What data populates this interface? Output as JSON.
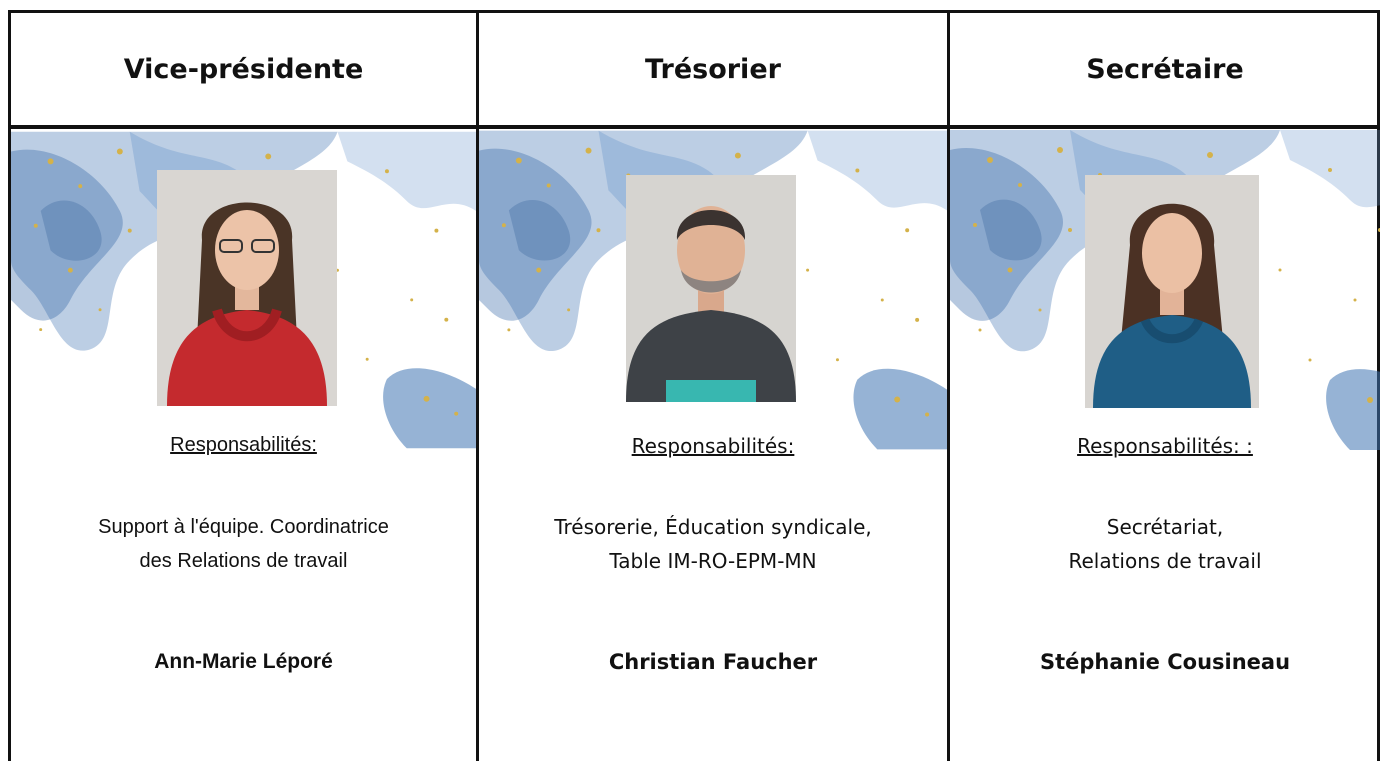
{
  "columns": [
    {
      "title": "Vice-présidente",
      "label": "Responsabilités:",
      "description": [
        "Support à l'équipe. Coordinatrice",
        "des Relations de travail"
      ],
      "name": "Ann-Marie Léporé"
    },
    {
      "title": "Trésorier",
      "label": "Responsabilités:",
      "description": [
        "Trésorerie, Éducation syndicale,",
        "Table IM-RO-EPM-MN"
      ],
      "name": "Christian Faucher"
    },
    {
      "title": "Secrétaire",
      "label": "Responsabilités: :",
      "description": [
        "Secrétariat,",
        "Relations de travail"
      ],
      "name": "Stéphanie Cousineau"
    }
  ]
}
